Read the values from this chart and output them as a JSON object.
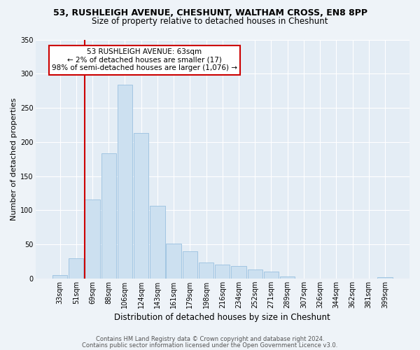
{
  "title_line1": "53, RUSHLEIGH AVENUE, CHESHUNT, WALTHAM CROSS, EN8 8PP",
  "title_line2": "Size of property relative to detached houses in Cheshunt",
  "xlabel": "Distribution of detached houses by size in Cheshunt",
  "ylabel": "Number of detached properties",
  "bar_labels": [
    "33sqm",
    "51sqm",
    "69sqm",
    "88sqm",
    "106sqm",
    "124sqm",
    "143sqm",
    "161sqm",
    "179sqm",
    "198sqm",
    "216sqm",
    "234sqm",
    "252sqm",
    "271sqm",
    "289sqm",
    "307sqm",
    "326sqm",
    "344sqm",
    "362sqm",
    "381sqm",
    "399sqm"
  ],
  "bar_heights": [
    5,
    30,
    116,
    183,
    284,
    213,
    106,
    51,
    40,
    23,
    20,
    18,
    13,
    10,
    3,
    0,
    0,
    0,
    0,
    0,
    2
  ],
  "bar_color": "#cce0f0",
  "bar_edge_color": "#99c0e0",
  "vline_color": "#cc0000",
  "annotation_text_line1": "53 RUSHLEIGH AVENUE: 63sqm",
  "annotation_text_line2": "← 2% of detached houses are smaller (17)",
  "annotation_text_line3": "98% of semi-detached houses are larger (1,076) →",
  "annotation_box_color": "#ffffff",
  "annotation_box_edge": "#cc0000",
  "ylim": [
    0,
    350
  ],
  "yticks": [
    0,
    50,
    100,
    150,
    200,
    250,
    300,
    350
  ],
  "footer_line1": "Contains HM Land Registry data © Crown copyright and database right 2024.",
  "footer_line2": "Contains public sector information licensed under the Open Government Licence v3.0.",
  "bg_color": "#eef3f8",
  "plot_bg_color": "#e4edf5",
  "grid_color": "#ffffff",
  "title1_fontsize": 9,
  "title2_fontsize": 8.5,
  "ylabel_fontsize": 8,
  "xlabel_fontsize": 8.5,
  "tick_fontsize": 7,
  "annotation_fontsize": 7.5,
  "footer_fontsize": 6
}
